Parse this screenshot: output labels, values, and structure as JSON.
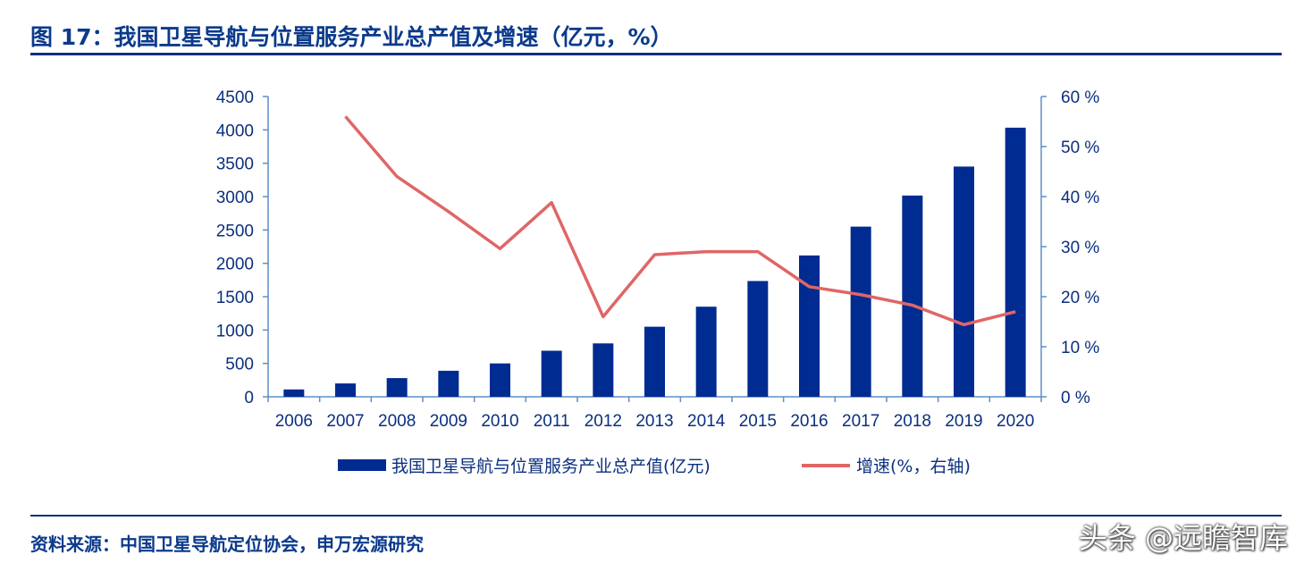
{
  "header": {
    "title": "图 17：我国卫星导航与位置服务产业总产值及增速（亿元，%）"
  },
  "footer": {
    "source": "资料来源：中国卫星导航定位协会，申万宏源研究",
    "watermark": "头条 @远瞻智库"
  },
  "chart_data": {
    "type": "bar",
    "categories": [
      "2006",
      "2007",
      "2008",
      "2009",
      "2010",
      "2011",
      "2012",
      "2013",
      "2014",
      "2015",
      "2016",
      "2017",
      "2018",
      "2019",
      "2020"
    ],
    "series": [
      {
        "name": "我国卫星导航与位置服务产业总产值(亿元)",
        "type": "bar",
        "axis": "left",
        "values": [
          110,
          200,
          280,
          390,
          500,
          690,
          800,
          1050,
          1350,
          1735,
          2118,
          2550,
          3016,
          3450,
          4033
        ]
      },
      {
        "name": "增速(%，右轴)",
        "type": "line",
        "axis": "right",
        "values": [
          null,
          56,
          44,
          37,
          29.6,
          38.8,
          16,
          28.4,
          29,
          29,
          22,
          20.4,
          18.3,
          14.4,
          17
        ]
      }
    ],
    "left_axis": {
      "range": [
        0,
        4500
      ],
      "ticks": [
        "0",
        "500",
        "1000",
        "1500",
        "2000",
        "2500",
        "3000",
        "3500",
        "4000",
        "4500"
      ]
    },
    "right_axis": {
      "range": [
        0,
        60
      ],
      "ticks": [
        "0 %",
        "10 %",
        "20 %",
        "30 %",
        "40 %",
        "50 %",
        "60 %"
      ]
    },
    "grid": false,
    "legend_position": "bottom",
    "colors": {
      "bar": "#002b91",
      "line": "#e06666",
      "axis": "#5b8fc9",
      "text": "#0b2f7e"
    }
  }
}
